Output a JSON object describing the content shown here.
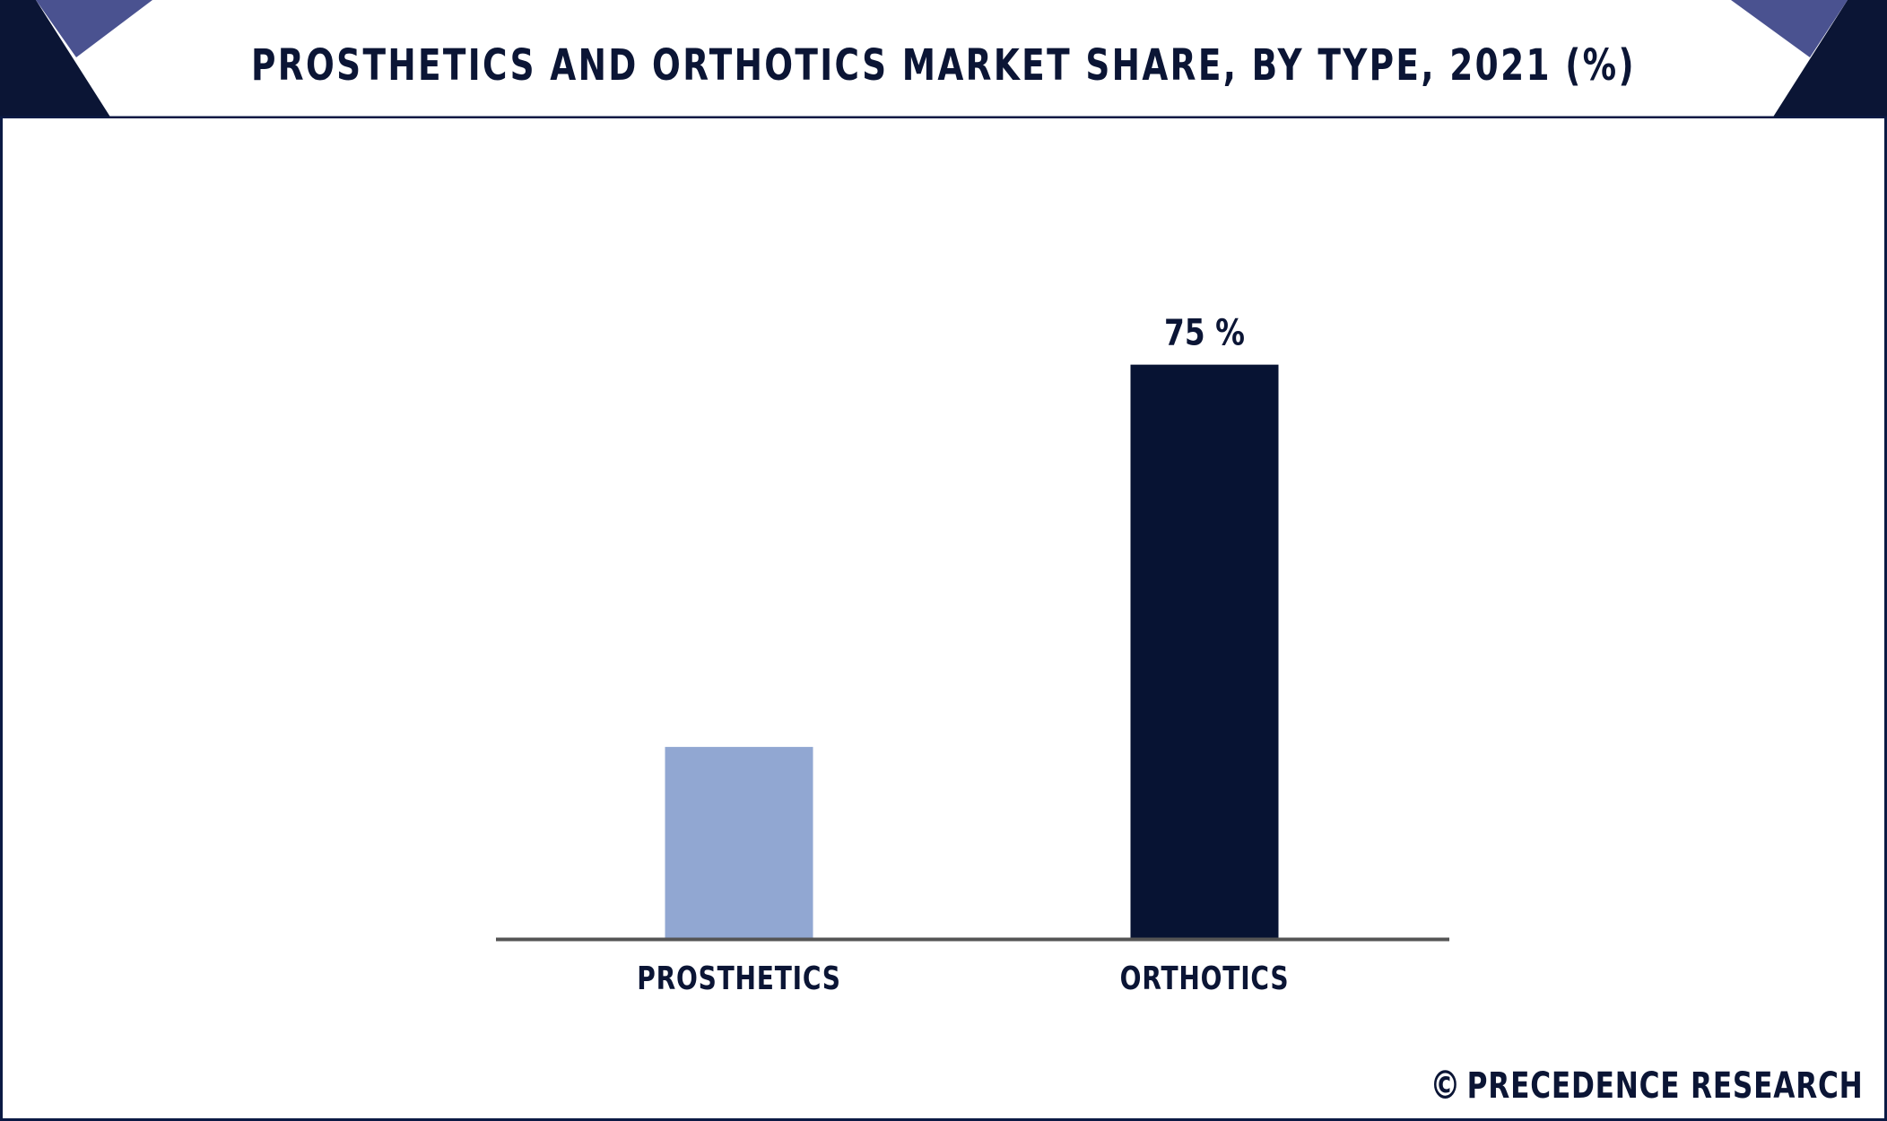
{
  "title": "PROSTHETICS AND ORTHOTICS MARKET SHARE, BY TYPE, 2021 (%)",
  "watermark": {
    "symbol": "©",
    "brand": "PRECEDENCE RESEARCH"
  },
  "colors": {
    "frame": "#0b1a44",
    "banner_dark": "#0b1535",
    "banner_accent": "#4a5290",
    "axis": "#555555"
  },
  "chart_data": {
    "type": "bar",
    "title": "PROSTHETICS AND ORTHOTICS MARKET SHARE, BY TYPE, 2021 (%)",
    "categories": [
      "PROSTHETICS",
      "ORTHOTICS"
    ],
    "values": [
      25,
      75
    ],
    "data_labels": [
      "",
      "75 %"
    ],
    "bar_colors": [
      "#91a7d2",
      "#071333"
    ],
    "ylim": [
      0,
      80
    ],
    "xlabel": "",
    "ylabel": "",
    "grid": false,
    "legend": "none"
  }
}
